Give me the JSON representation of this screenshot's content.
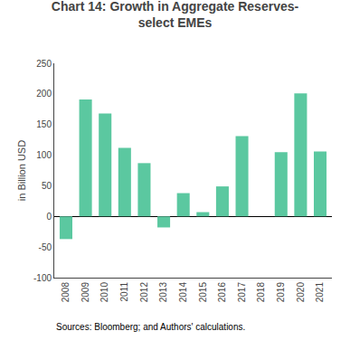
{
  "chart_data": {
    "type": "bar",
    "title": "Chart 14: Growth in Aggregate Reserves-\nselect EMEs",
    "categories": [
      "2008",
      "2009",
      "2010",
      "2011",
      "2012",
      "2013",
      "2014",
      "2015",
      "2016",
      "2017",
      "2018",
      "2019",
      "2020",
      "2021"
    ],
    "values": [
      -37,
      191,
      168,
      112,
      87,
      -18,
      38,
      7,
      49,
      131,
      0,
      105,
      201,
      106
    ],
    "color": "#5bc8a0",
    "ylabel": "in Billion USD",
    "ylim": [
      -100,
      250
    ],
    "yticks": [
      -100,
      -50,
      0,
      50,
      100,
      150,
      200,
      250
    ],
    "grid": false,
    "annotations": [
      "Sources: Bloomberg; and Authors' calculations."
    ]
  }
}
